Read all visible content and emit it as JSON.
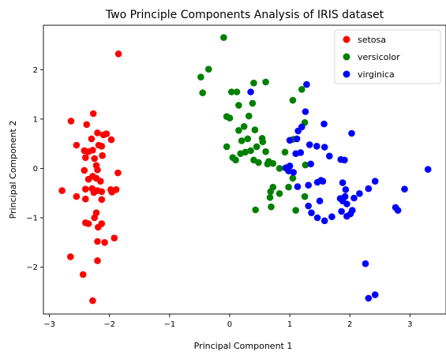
{
  "chart_data": {
    "type": "scatter",
    "title": "Two Principle Components Analysis of IRIS dataset",
    "xlabel": "Principal Component 1",
    "ylabel": "Principal Component 2",
    "xlim": [
      -3.1,
      3.6
    ],
    "ylim": [
      -2.95,
      2.9
    ],
    "xticks": [
      -3,
      -2,
      -1,
      0,
      1,
      2,
      3
    ],
    "yticks": [
      -2,
      -1,
      0,
      1,
      2
    ],
    "grid": false,
    "legend_position": "top-right",
    "series": [
      {
        "name": "setosa",
        "color": "#ff0000",
        "points": [
          [
            -1.85,
            2.32
          ],
          [
            -2.27,
            1.11
          ],
          [
            -2.38,
            0.89
          ],
          [
            -2.64,
            0.96
          ],
          [
            -2.55,
            0.47
          ],
          [
            -2.2,
            0.72
          ],
          [
            -2.1,
            0.68
          ],
          [
            -2.05,
            0.7
          ],
          [
            -1.97,
            0.58
          ],
          [
            -2.3,
            0.6
          ],
          [
            -2.42,
            0.36
          ],
          [
            -2.35,
            0.34
          ],
          [
            -2.28,
            0.37
          ],
          [
            -2.18,
            0.47
          ],
          [
            -2.13,
            0.45
          ],
          [
            -2.25,
            0.2
          ],
          [
            -2.4,
            0.22
          ],
          [
            -2.12,
            0.26
          ],
          [
            -2.22,
            0.06
          ],
          [
            -2.42,
            -0.04
          ],
          [
            -2.2,
            -0.03
          ],
          [
            -1.86,
            -0.09
          ],
          [
            -2.28,
            -0.16
          ],
          [
            -2.35,
            -0.22
          ],
          [
            -2.22,
            -0.2
          ],
          [
            -2.15,
            -0.26
          ],
          [
            -2.29,
            -0.41
          ],
          [
            -2.2,
            -0.45
          ],
          [
            -2.13,
            -0.47
          ],
          [
            -2.26,
            -0.49
          ],
          [
            -2.4,
            -0.42
          ],
          [
            -2.79,
            -0.45
          ],
          [
            -1.98,
            -0.43
          ],
          [
            -1.89,
            -0.43
          ],
          [
            -1.96,
            -0.48
          ],
          [
            -2.55,
            -0.57
          ],
          [
            -2.4,
            -0.62
          ],
          [
            -2.13,
            -0.63
          ],
          [
            -2.22,
            -0.9
          ],
          [
            -2.25,
            -1.0
          ],
          [
            -2.4,
            -1.1
          ],
          [
            -2.35,
            -1.12
          ],
          [
            -2.13,
            -1.12
          ],
          [
            -2.19,
            -1.19
          ],
          [
            -1.92,
            -1.41
          ],
          [
            -2.2,
            -1.48
          ],
          [
            -2.08,
            -1.5
          ],
          [
            -2.65,
            -1.79
          ],
          [
            -2.2,
            -1.87
          ],
          [
            -2.44,
            -2.15
          ],
          [
            -2.28,
            -2.68
          ]
        ]
      },
      {
        "name": "versicolor",
        "color": "#008000",
        "points": [
          [
            -0.1,
            2.65
          ],
          [
            -0.35,
            2.01
          ],
          [
            -0.48,
            1.85
          ],
          [
            -0.45,
            1.53
          ],
          [
            0.6,
            1.75
          ],
          [
            0.4,
            1.73
          ],
          [
            0.03,
            1.55
          ],
          [
            0.12,
            1.55
          ],
          [
            1.05,
            1.38
          ],
          [
            1.2,
            1.6
          ],
          [
            0.38,
            1.32
          ],
          [
            0.15,
            1.28
          ],
          [
            0.32,
            1.06
          ],
          [
            -0.05,
            1.05
          ],
          [
            0.0,
            1.02
          ],
          [
            1.25,
            0.93
          ],
          [
            0.24,
            0.85
          ],
          [
            0.42,
            0.78
          ],
          [
            0.15,
            0.77
          ],
          [
            0.54,
            0.61
          ],
          [
            1.06,
            0.59
          ],
          [
            0.3,
            0.6
          ],
          [
            0.2,
            0.56
          ],
          [
            0.55,
            0.54
          ],
          [
            0.45,
            0.44
          ],
          [
            -0.05,
            0.44
          ],
          [
            0.35,
            0.36
          ],
          [
            0.6,
            0.34
          ],
          [
            0.26,
            0.33
          ],
          [
            0.92,
            0.33
          ],
          [
            0.18,
            0.3
          ],
          [
            0.05,
            0.22
          ],
          [
            0.1,
            0.17
          ],
          [
            0.4,
            0.17
          ],
          [
            0.48,
            0.12
          ],
          [
            0.63,
            0.09
          ],
          [
            0.72,
            0.1
          ],
          [
            0.65,
            0.14
          ],
          [
            0.83,
            0.0
          ],
          [
            0.96,
            0.02
          ],
          [
            1.26,
            0.07
          ],
          [
            1.05,
            -0.2
          ],
          [
            0.72,
            -0.38
          ],
          [
            0.98,
            -0.38
          ],
          [
            0.83,
            -0.51
          ],
          [
            0.68,
            -0.47
          ],
          [
            0.67,
            -0.59
          ],
          [
            1.25,
            -0.57
          ],
          [
            0.69,
            -0.78
          ],
          [
            1.1,
            -0.85
          ],
          [
            0.43,
            -0.84
          ]
        ]
      },
      {
        "name": "virginica",
        "color": "#0000ff",
        "points": [
          [
            1.28,
            1.7
          ],
          [
            0.35,
            1.55
          ],
          [
            1.26,
            1.15
          ],
          [
            1.57,
            0.9
          ],
          [
            1.2,
            0.84
          ],
          [
            1.14,
            0.76
          ],
          [
            2.03,
            0.71
          ],
          [
            1.12,
            0.6
          ],
          [
            1.0,
            0.57
          ],
          [
            1.33,
            0.48
          ],
          [
            1.45,
            0.45
          ],
          [
            1.58,
            0.43
          ],
          [
            1.1,
            0.3
          ],
          [
            1.18,
            0.32
          ],
          [
            1.66,
            0.25
          ],
          [
            1.85,
            0.18
          ],
          [
            1.91,
            0.17
          ],
          [
            1.35,
            0.09
          ],
          [
            0.93,
            0.01
          ],
          [
            0.98,
            -0.05
          ],
          [
            1.0,
            0.05
          ],
          [
            1.06,
            -0.08
          ],
          [
            1.52,
            -0.24
          ],
          [
            1.46,
            -0.28
          ],
          [
            1.13,
            -0.37
          ],
          [
            1.31,
            -0.34
          ],
          [
            1.55,
            -0.26
          ],
          [
            1.88,
            -0.29
          ],
          [
            2.42,
            -0.26
          ],
          [
            2.31,
            -0.41
          ],
          [
            2.16,
            -0.51
          ],
          [
            1.93,
            -0.43
          ],
          [
            1.92,
            -0.57
          ],
          [
            1.88,
            -0.66
          ],
          [
            1.84,
            -0.61
          ],
          [
            2.07,
            -0.6
          ],
          [
            1.95,
            -0.72
          ],
          [
            1.5,
            -0.66
          ],
          [
            1.31,
            -0.76
          ],
          [
            2.04,
            -0.85
          ],
          [
            2.01,
            -0.92
          ],
          [
            1.86,
            -0.87
          ],
          [
            1.95,
            -0.97
          ],
          [
            1.7,
            -0.98
          ],
          [
            1.46,
            -1.0
          ],
          [
            1.58,
            -1.06
          ],
          [
            1.36,
            -0.9
          ],
          [
            2.76,
            -0.79
          ],
          [
            2.8,
            -0.85
          ],
          [
            2.91,
            -0.42
          ],
          [
            3.3,
            -0.02
          ],
          [
            2.26,
            -1.93
          ],
          [
            2.42,
            -2.56
          ],
          [
            2.31,
            -2.63
          ]
        ]
      }
    ]
  }
}
